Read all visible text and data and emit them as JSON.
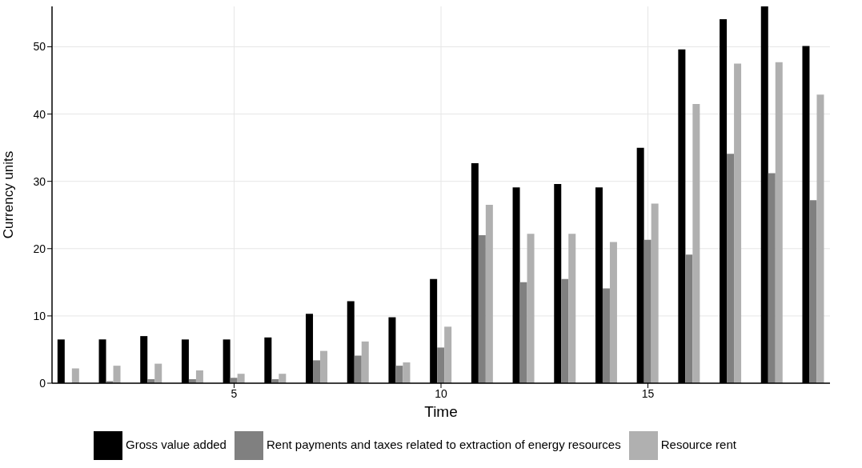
{
  "chart_data": {
    "type": "bar",
    "xlabel": "Time",
    "ylabel": "Currency units",
    "x": [
      1,
      2,
      3,
      4,
      5,
      6,
      7,
      8,
      9,
      10,
      11,
      12,
      13,
      14,
      15,
      16,
      17,
      18,
      19
    ],
    "series": [
      {
        "name": "Gross value added",
        "color": "#000000",
        "values": [
          6.5,
          6.5,
          7.0,
          6.5,
          6.5,
          6.8,
          10.3,
          12.2,
          9.8,
          15.5,
          32.7,
          29.1,
          29.6,
          29.1,
          35.0,
          49.6,
          54.1,
          56,
          50.1
        ]
      },
      {
        "name": "Rent payments and taxes related to extraction of energy resources",
        "color": "#808080",
        "values": [
          0,
          0.3,
          0.6,
          0.6,
          0.8,
          0.6,
          3.4,
          4.1,
          2.6,
          5.3,
          22.0,
          15.0,
          15.5,
          14.1,
          21.3,
          19.1,
          34.1,
          31.2,
          27.2
        ]
      },
      {
        "name": "Resource rent",
        "color": "#b0b0b0",
        "values": [
          2.2,
          2.6,
          2.9,
          1.9,
          1.4,
          1.4,
          4.8,
          6.2,
          3.1,
          8.4,
          26.5,
          22.2,
          22.2,
          21.0,
          26.7,
          41.5,
          47.5,
          47.7,
          42.9
        ]
      }
    ],
    "xlim": [
      0.6,
      19.4
    ],
    "xticks": [
      5,
      10,
      15
    ],
    "ylim": [
      0,
      56
    ],
    "yticks": [
      0,
      10,
      20,
      30,
      40,
      50
    ],
    "grid": true,
    "legend": "bottom"
  }
}
